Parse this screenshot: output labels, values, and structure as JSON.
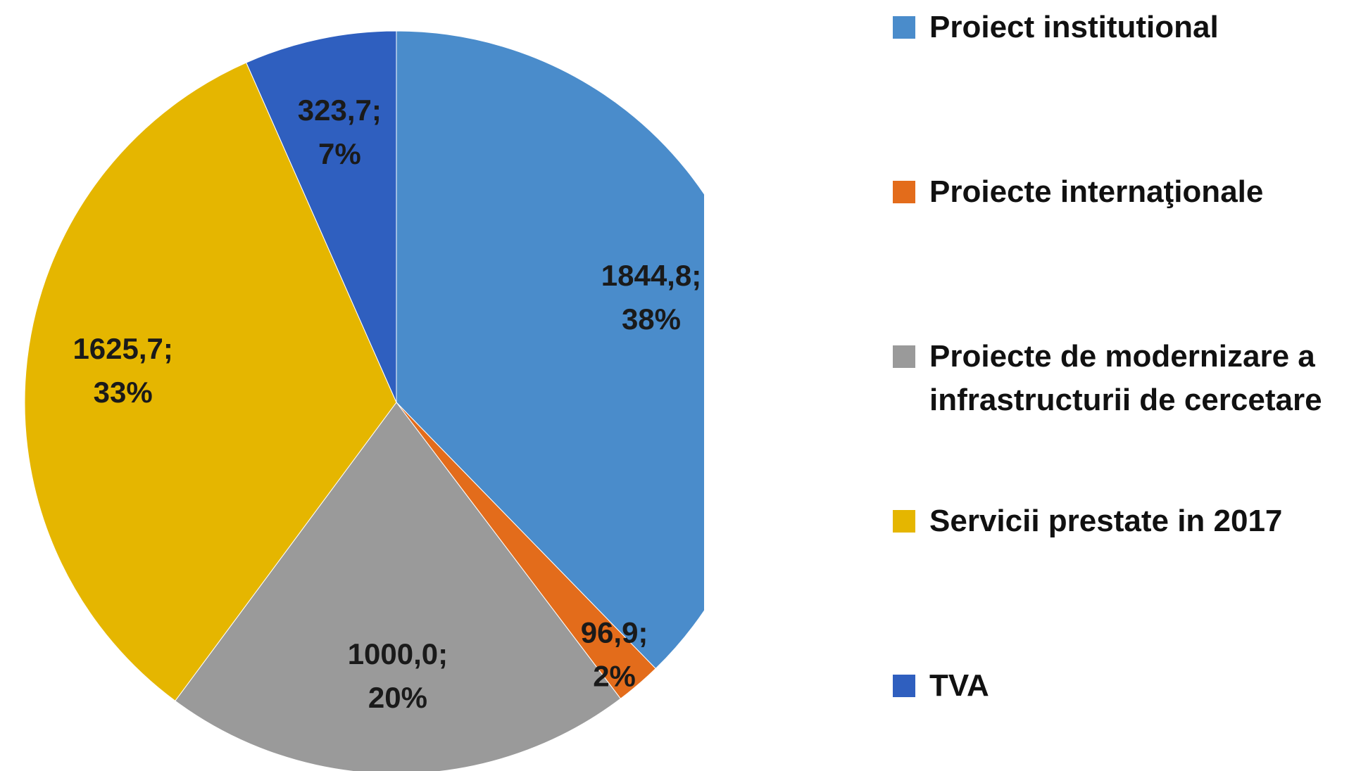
{
  "chart_data": {
    "type": "pie",
    "categories": [
      "Proiect institutional",
      "Proiecte internaţionale",
      "Proiecte de modernizare a infrastructurii de cercetare",
      "Servicii prestate in 2017",
      "TVA"
    ],
    "values": [
      1844.8,
      96.9,
      1000.0,
      1625.7,
      323.7
    ],
    "value_labels": [
      "1844,8;",
      "96,9;",
      "1000,0;",
      "1625,7;",
      "323,7;"
    ],
    "percent_labels": [
      "38%",
      "2%",
      "20%",
      "33%",
      "7%"
    ],
    "colors": [
      "#4a8ccb",
      "#e36c1b",
      "#9a9a9a",
      "#e5b600",
      "#2f5fbf"
    ],
    "legend": "right"
  }
}
